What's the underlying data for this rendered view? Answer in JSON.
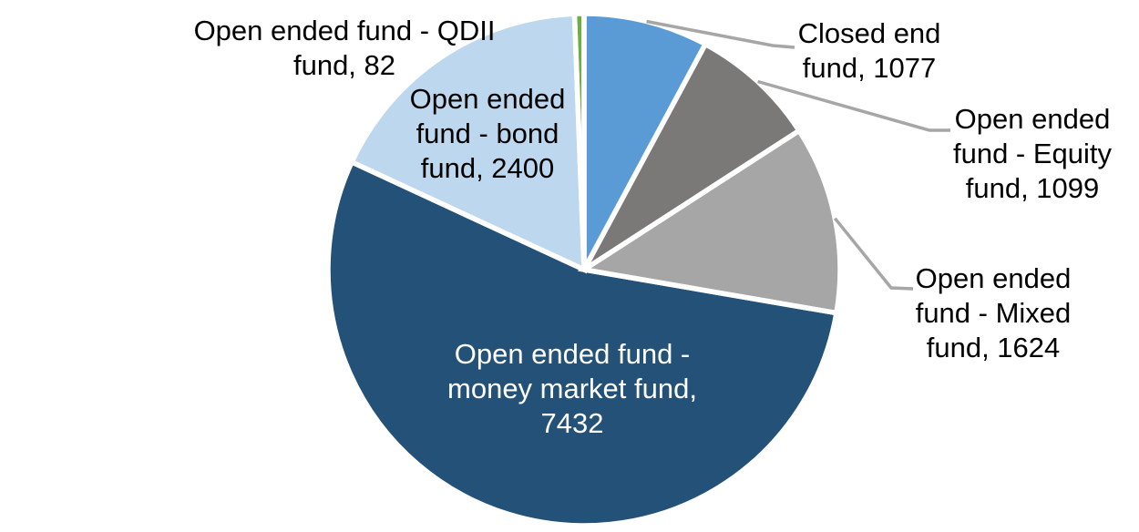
{
  "chart_data": {
    "type": "pie",
    "title": "",
    "total": 13714,
    "start_angle_deg": 0,
    "direction": "clockwise",
    "legend": "none",
    "background_color": "#FFFFFF",
    "separator_color": "#FFFFFF",
    "leader_line_color": "#A6A6A6",
    "slices": [
      {
        "name": "closed-end-fund",
        "label": "Closed end fund",
        "value": 1077,
        "color": "#5B9BD5",
        "text_color": "#000000",
        "label_lines": [
          "Closed end",
          "fund, 1077"
        ]
      },
      {
        "name": "open-ended-fund-equity",
        "label": "Open ended fund - Equity fund",
        "value": 1099,
        "color": "#7B7878",
        "text_color": "#000000",
        "label_lines": [
          "Open ended",
          "fund - Equity",
          "fund, 1099"
        ]
      },
      {
        "name": "open-ended-fund-mixed",
        "label": "Open ended fund - Mixed fund",
        "value": 1624,
        "color": "#A6A6A6",
        "text_color": "#000000",
        "label_lines": [
          "Open ended",
          "fund - Mixed",
          "fund, 1624"
        ]
      },
      {
        "name": "open-ended-fund-money-market",
        "label": "Open ended fund - money market fund",
        "value": 7432,
        "color": "#235178",
        "text_color": "#FFFFFF",
        "label_lines": [
          "Open ended fund -",
          "money market fund,",
          "7432"
        ]
      },
      {
        "name": "open-ended-fund-bond",
        "label": "Open ended fund - bond fund",
        "value": 2400,
        "color": "#BDD7EE",
        "text_color": "#000000",
        "label_lines": [
          "Open ended",
          "fund - bond",
          "fund, 2400"
        ]
      },
      {
        "name": "open-ended-fund-qdii",
        "label": "Open ended fund - QDII fund",
        "value": 82,
        "color": "#70AD47",
        "text_color": "#000000",
        "label_lines": [
          "Open ended fund - QDII",
          "fund, 82"
        ]
      }
    ]
  }
}
